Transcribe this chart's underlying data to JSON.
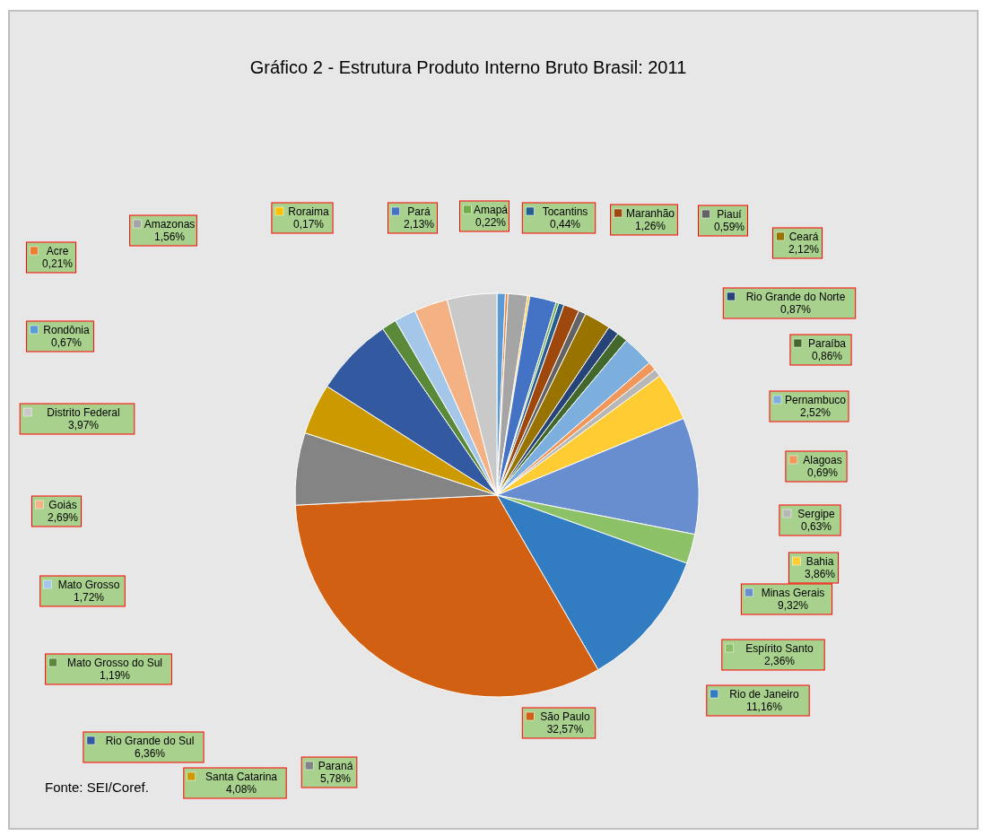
{
  "chart_data": {
    "type": "pie",
    "title": "Gráfico 2 - Estrutura Produto Interno Bruto Brasil: 2011",
    "categories": [
      "Rondônia",
      "Acre",
      "Amazonas",
      "Roraima",
      "Pará",
      "Amapá",
      "Tocantins",
      "Maranhão",
      "Piauí",
      "Ceará",
      "Rio Grande do Norte",
      "Paraíba",
      "Pernambuco",
      "Alagoas",
      "Sergipe",
      "Bahia",
      "Minas Gerais",
      "Espírito Santo",
      "Rio de Janeiro",
      "São Paulo",
      "Paraná",
      "Santa Catarina",
      "Rio Grande do Sul",
      "Mato Grosso do Sul",
      "Mato Grosso",
      "Goiás",
      "Distrito Federal"
    ],
    "values": [
      0.67,
      0.21,
      1.56,
      0.17,
      2.13,
      0.22,
      0.44,
      1.26,
      0.59,
      2.12,
      0.87,
      0.86,
      2.52,
      0.69,
      0.63,
      3.86,
      9.32,
      2.36,
      11.16,
      32.57,
      5.78,
      4.08,
      6.36,
      1.19,
      1.72,
      2.69,
      3.97
    ],
    "value_labels": [
      "0,67%",
      "0,21%",
      "1,56%",
      "0,17%",
      "2,13%",
      "0,22%",
      "0,44%",
      "1,26%",
      "0,59%",
      "2,12%",
      "0,87%",
      "0,86%",
      "2,52%",
      "0,69%",
      "0,63%",
      "3,86%",
      "9,32%",
      "2,36%",
      "11,16%",
      "32,57%",
      "5,78%",
      "4,08%",
      "6,36%",
      "1,19%",
      "1,72%",
      "2,69%",
      "3,97%"
    ],
    "colors": [
      "#5b9bd5",
      "#ed7d31",
      "#a5a5a5",
      "#ffc000",
      "#4472c4",
      "#70ad47",
      "#255e91",
      "#9e480e",
      "#636363",
      "#997300",
      "#264478",
      "#43682b",
      "#7cafdd",
      "#f1975a",
      "#b7b7b7",
      "#ffcd33",
      "#698ed0",
      "#8cc168",
      "#327dc2",
      "#d26012",
      "#848484",
      "#cc9a00",
      "#335aa1",
      "#5a8a39",
      "#a3c6e9",
      "#f4b183",
      "#c9c9c9"
    ],
    "annotations": [
      "Fonte: SEI/Coref."
    ],
    "legend": "top left"
  }
}
